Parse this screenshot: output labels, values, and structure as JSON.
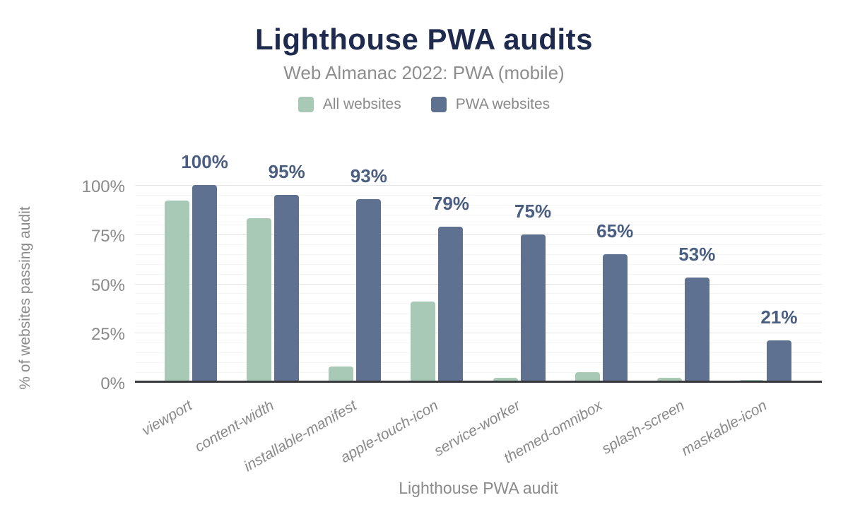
{
  "chart_data": {
    "type": "bar",
    "title": "Lighthouse PWA audits",
    "subtitle": "Web Almanac 2022: PWA (mobile)",
    "xlabel": "Lighthouse PWA audit",
    "ylabel": "% of websites passing audit",
    "categories": [
      "viewport",
      "content-width",
      "installable-manifest",
      "apple-touch-icon",
      "service-worker",
      "themed-omnibox",
      "splash-screen",
      "maskable-icon"
    ],
    "series": [
      {
        "name": "All websites",
        "color": "#a8c9b6",
        "values": [
          92,
          83,
          8,
          41,
          2,
          5,
          2,
          1
        ]
      },
      {
        "name": "PWA websites",
        "color": "#5e7190",
        "values": [
          100,
          95,
          93,
          79,
          75,
          65,
          53,
          21
        ]
      }
    ],
    "data_labels": {
      "on_series": "PWA websites",
      "values": [
        "100%",
        "95%",
        "93%",
        "79%",
        "75%",
        "65%",
        "53%",
        "21%"
      ],
      "color": "#4a5e82"
    },
    "yticks": [
      "0%",
      "25%",
      "50%",
      "75%",
      "100%"
    ],
    "ylim": [
      0,
      100
    ],
    "grid": {
      "minor_step": 5,
      "major_step": 25,
      "minor_color": "#f4f4f4",
      "major_color": "#e5e5e5"
    },
    "legend_position": "top",
    "colors": {
      "title": "#1f2b4e",
      "axis_text": "#8a8a8a",
      "axis_line": "#37383c",
      "background": "#ffffff"
    }
  }
}
